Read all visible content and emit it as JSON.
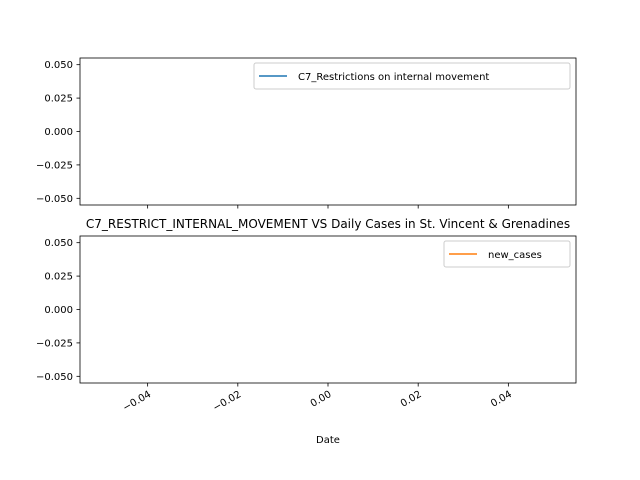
{
  "chart_data": [
    {
      "type": "line",
      "title": "",
      "xlabel": "",
      "ylabel": "",
      "ylim": [
        -0.055,
        0.055
      ],
      "yticks": [
        "0.050",
        "0.025",
        "0.000",
        "−0.025",
        "−0.050"
      ],
      "ytick_values": [
        0.05,
        0.025,
        0.0,
        -0.025,
        -0.05
      ],
      "legend_position": "top-right",
      "series": [
        {
          "name": "C7_Restrictions on internal movement",
          "color": "#1f77b4",
          "x": [],
          "y": []
        }
      ]
    },
    {
      "type": "line",
      "title": "C7_RESTRICT_INTERNAL_MOVEMENT VS Daily Cases in St. Vincent & Grenadines",
      "xlabel": "Date",
      "ylabel": "",
      "xlim": [
        -0.055,
        0.055
      ],
      "ylim": [
        -0.055,
        0.055
      ],
      "xticks": [
        "−0.04",
        "−0.02",
        "0.00",
        "0.02",
        "0.04"
      ],
      "xtick_values": [
        -0.04,
        -0.02,
        0.0,
        0.02,
        0.04
      ],
      "yticks": [
        "0.050",
        "0.025",
        "0.000",
        "−0.025",
        "−0.050"
      ],
      "ytick_values": [
        0.05,
        0.025,
        0.0,
        -0.025,
        -0.05
      ],
      "legend_position": "top-right",
      "series": [
        {
          "name": "new_cases",
          "color": "#ff7f0e",
          "x": [],
          "y": []
        }
      ]
    }
  ]
}
